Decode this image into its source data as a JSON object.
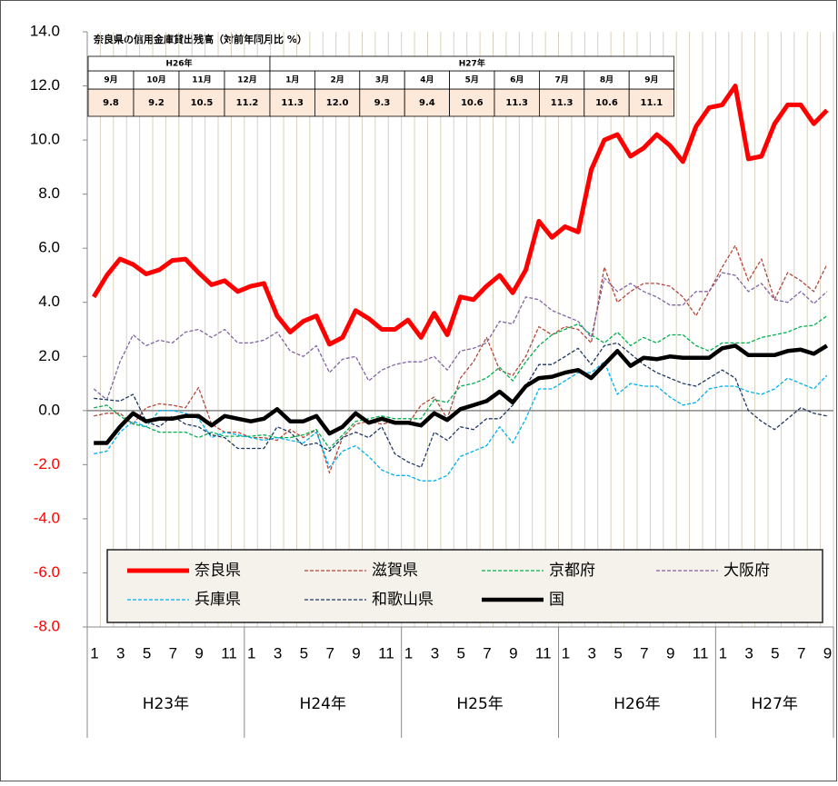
{
  "chart_data": {
    "type": "line",
    "categories": [
      "1",
      null,
      "3",
      null,
      "5",
      null,
      "7",
      null,
      "9",
      null,
      "11",
      null,
      "1",
      null,
      "3",
      null,
      "5",
      null,
      "7",
      null,
      "9",
      null,
      "11",
      null,
      "1",
      null,
      "3",
      null,
      "5",
      null,
      "7",
      null,
      "9",
      null,
      "11",
      null,
      "1",
      null,
      "3",
      null,
      "5",
      null,
      "7",
      null,
      "9",
      null,
      "11",
      null,
      "1",
      null,
      "3",
      null,
      "5",
      null,
      "7",
      null,
      "9"
    ],
    "groups": [
      "H23年",
      "H24年",
      "H25年",
      "H26年",
      "H27年"
    ],
    "ylim": [
      -8,
      14
    ],
    "yticks": [
      {
        "value": -8,
        "label": "-8.0"
      },
      {
        "value": -6,
        "label": "-6.0"
      },
      {
        "value": -4,
        "label": "-4.0"
      },
      {
        "value": -2,
        "label": "-2.0"
      },
      {
        "value": 0,
        "label": "0.0"
      },
      {
        "value": 2,
        "label": "2.0"
      },
      {
        "value": 4,
        "label": "4.0"
      },
      {
        "value": 6,
        "label": "6.0"
      },
      {
        "value": 8,
        "label": "8.0"
      },
      {
        "value": 10,
        "label": "10.0"
      },
      {
        "value": 12,
        "label": "12.0"
      },
      {
        "value": 14,
        "label": "14.0"
      }
    ],
    "grid": "vertical",
    "legend": "bottom",
    "series": [
      {
        "name": "奈良県",
        "color": "#ff0000",
        "line_style": "thick",
        "values": [
          4.2,
          5.0,
          5.6,
          5.4,
          5.05,
          5.2,
          5.55,
          5.6,
          5.1,
          4.65,
          4.8,
          4.4,
          4.6,
          4.7,
          3.5,
          2.9,
          3.3,
          3.5,
          2.45,
          2.7,
          3.7,
          3.4,
          3.0,
          3.0,
          3.35,
          2.7,
          3.6,
          2.8,
          4.2,
          4.1,
          4.6,
          5.0,
          4.35,
          5.2,
          7.0,
          6.4,
          6.8,
          6.6,
          8.9,
          10.0,
          10.2,
          9.4,
          9.7,
          10.2,
          9.8,
          9.2,
          10.5,
          11.2,
          11.3,
          12.0,
          9.3,
          9.4,
          10.6,
          11.3,
          11.3,
          10.6,
          11.1
        ]
      },
      {
        "name": "滋賀県",
        "color": "#b5473a",
        "line_style": "dashed",
        "values": [
          -0.2,
          -0.1,
          -0.1,
          -0.5,
          0.1,
          0.25,
          0.2,
          0.1,
          0.85,
          -0.5,
          -0.8,
          -0.8,
          -1.0,
          -1.0,
          -1.1,
          -0.7,
          -1.0,
          -0.7,
          -2.3,
          -1.0,
          -0.5,
          -0.4,
          -0.5,
          -0.4,
          -0.5,
          0.2,
          0.5,
          -0.3,
          1.2,
          1.8,
          2.7,
          1.5,
          1.3,
          2.0,
          3.1,
          2.8,
          3.1,
          3.0,
          2.5,
          5.3,
          4.0,
          4.4,
          4.7,
          4.7,
          4.6,
          4.2,
          3.5,
          4.4,
          5.3,
          6.1,
          4.8,
          5.6,
          4.1,
          5.1,
          4.8,
          4.4,
          5.4
        ]
      },
      {
        "name": "京都府",
        "color": "#00b050",
        "line_style": "dashed",
        "values": [
          0.1,
          0.2,
          -0.2,
          -0.5,
          -0.6,
          -0.8,
          -0.8,
          -0.8,
          -1.0,
          -0.8,
          -0.95,
          -0.95,
          -0.95,
          -0.9,
          -1.0,
          -1.0,
          -0.9,
          -0.7,
          -1.4,
          -0.9,
          -0.4,
          -0.3,
          -0.2,
          -0.3,
          -0.3,
          -0.3,
          0.4,
          0.3,
          0.9,
          1.0,
          1.2,
          1.6,
          1.1,
          1.8,
          2.4,
          2.8,
          3.0,
          3.2,
          2.8,
          2.5,
          2.9,
          2.4,
          2.7,
          2.5,
          2.8,
          2.8,
          2.4,
          2.2,
          2.5,
          2.5,
          2.5,
          2.7,
          2.8,
          2.9,
          3.1,
          3.15,
          3.5
        ]
      },
      {
        "name": "大阪府",
        "color": "#8064a2",
        "line_style": "dashed",
        "values": [
          0.8,
          0.4,
          1.8,
          2.8,
          2.4,
          2.6,
          2.5,
          2.9,
          3.0,
          2.7,
          3.0,
          2.5,
          2.5,
          2.6,
          2.9,
          2.2,
          2.0,
          2.4,
          1.4,
          1.9,
          2.0,
          1.1,
          1.5,
          1.7,
          1.8,
          1.8,
          2.0,
          1.5,
          2.2,
          2.3,
          2.5,
          3.3,
          3.2,
          4.2,
          4.1,
          3.7,
          3.5,
          3.3,
          2.7,
          4.9,
          4.4,
          4.7,
          4.4,
          4.2,
          3.9,
          3.9,
          4.4,
          4.4,
          5.1,
          5.0,
          4.4,
          4.7,
          4.1,
          4.0,
          4.4,
          3.95,
          4.4
        ]
      },
      {
        "name": "兵庫県",
        "color": "#00b0f0",
        "line_style": "dashed",
        "values": [
          -1.6,
          -1.5,
          -0.8,
          -0.4,
          -0.6,
          0.0,
          0.0,
          -0.1,
          -0.3,
          -1.0,
          -0.8,
          -0.9,
          -1.0,
          -1.1,
          -1.0,
          -1.1,
          -1.2,
          -0.8,
          -2.1,
          -1.5,
          -1.3,
          -1.7,
          -2.2,
          -2.4,
          -2.4,
          -2.6,
          -2.6,
          -2.4,
          -1.7,
          -1.5,
          -1.3,
          -0.6,
          -1.2,
          -0.3,
          0.8,
          0.8,
          1.1,
          1.4,
          1.4,
          1.8,
          0.6,
          1.0,
          0.9,
          0.9,
          0.5,
          0.2,
          0.3,
          0.8,
          0.9,
          0.9,
          0.7,
          0.6,
          0.8,
          1.2,
          1.0,
          0.8,
          1.3
        ]
      },
      {
        "name": "和歌山県",
        "color": "#1f3864",
        "line_style": "dashed",
        "values": [
          0.45,
          0.4,
          0.35,
          0.6,
          -0.4,
          -0.6,
          -0.2,
          -0.5,
          -0.6,
          -0.9,
          -1.0,
          -1.4,
          -1.4,
          -1.4,
          -0.6,
          -0.8,
          -1.3,
          -1.2,
          -1.5,
          -1.0,
          -0.8,
          -1.0,
          -0.6,
          -1.6,
          -1.9,
          -2.1,
          -0.8,
          -1.1,
          -0.6,
          -0.7,
          -0.3,
          -0.3,
          0.2,
          0.9,
          1.7,
          1.7,
          2.0,
          2.3,
          1.7,
          2.4,
          2.5,
          2.1,
          1.7,
          1.4,
          1.2,
          1.0,
          0.9,
          1.2,
          1.5,
          1.2,
          0.0,
          -0.4,
          -0.7,
          -0.3,
          0.1,
          -0.1,
          -0.2
        ]
      },
      {
        "name": "国",
        "color": "#000000",
        "line_style": "thick",
        "values": [
          -1.2,
          -1.2,
          -0.6,
          -0.1,
          -0.4,
          -0.3,
          -0.3,
          -0.2,
          -0.2,
          -0.55,
          -0.2,
          -0.3,
          -0.4,
          -0.3,
          0.05,
          -0.4,
          -0.4,
          -0.2,
          -0.85,
          -0.6,
          -0.1,
          -0.45,
          -0.3,
          -0.45,
          -0.45,
          -0.55,
          -0.1,
          -0.35,
          0.05,
          0.2,
          0.35,
          0.7,
          0.3,
          0.9,
          1.2,
          1.25,
          1.4,
          1.5,
          1.2,
          1.7,
          2.2,
          1.65,
          1.95,
          1.9,
          2.0,
          1.95,
          1.95,
          1.95,
          2.3,
          2.4,
          2.05,
          2.05,
          2.05,
          2.2,
          2.25,
          2.1,
          2.4
        ]
      }
    ]
  },
  "inset_table": {
    "title": "奈良県の信用金庫貸出残高（対前年同月比 %）",
    "years": [
      {
        "label": "H26年",
        "months": [
          "9月",
          "10月",
          "11月",
          "12月"
        ],
        "values": [
          "9.8",
          "9.2",
          "10.5",
          "11.2"
        ]
      },
      {
        "label": "H27年",
        "months": [
          "1月",
          "2月",
          "3月",
          "4月",
          "5月",
          "6月",
          "7月",
          "8月",
          "9月"
        ],
        "values": [
          "11.3",
          "12.0",
          "9.3",
          "9.4",
          "10.6",
          "11.3",
          "11.3",
          "10.6",
          "11.1"
        ]
      }
    ]
  }
}
